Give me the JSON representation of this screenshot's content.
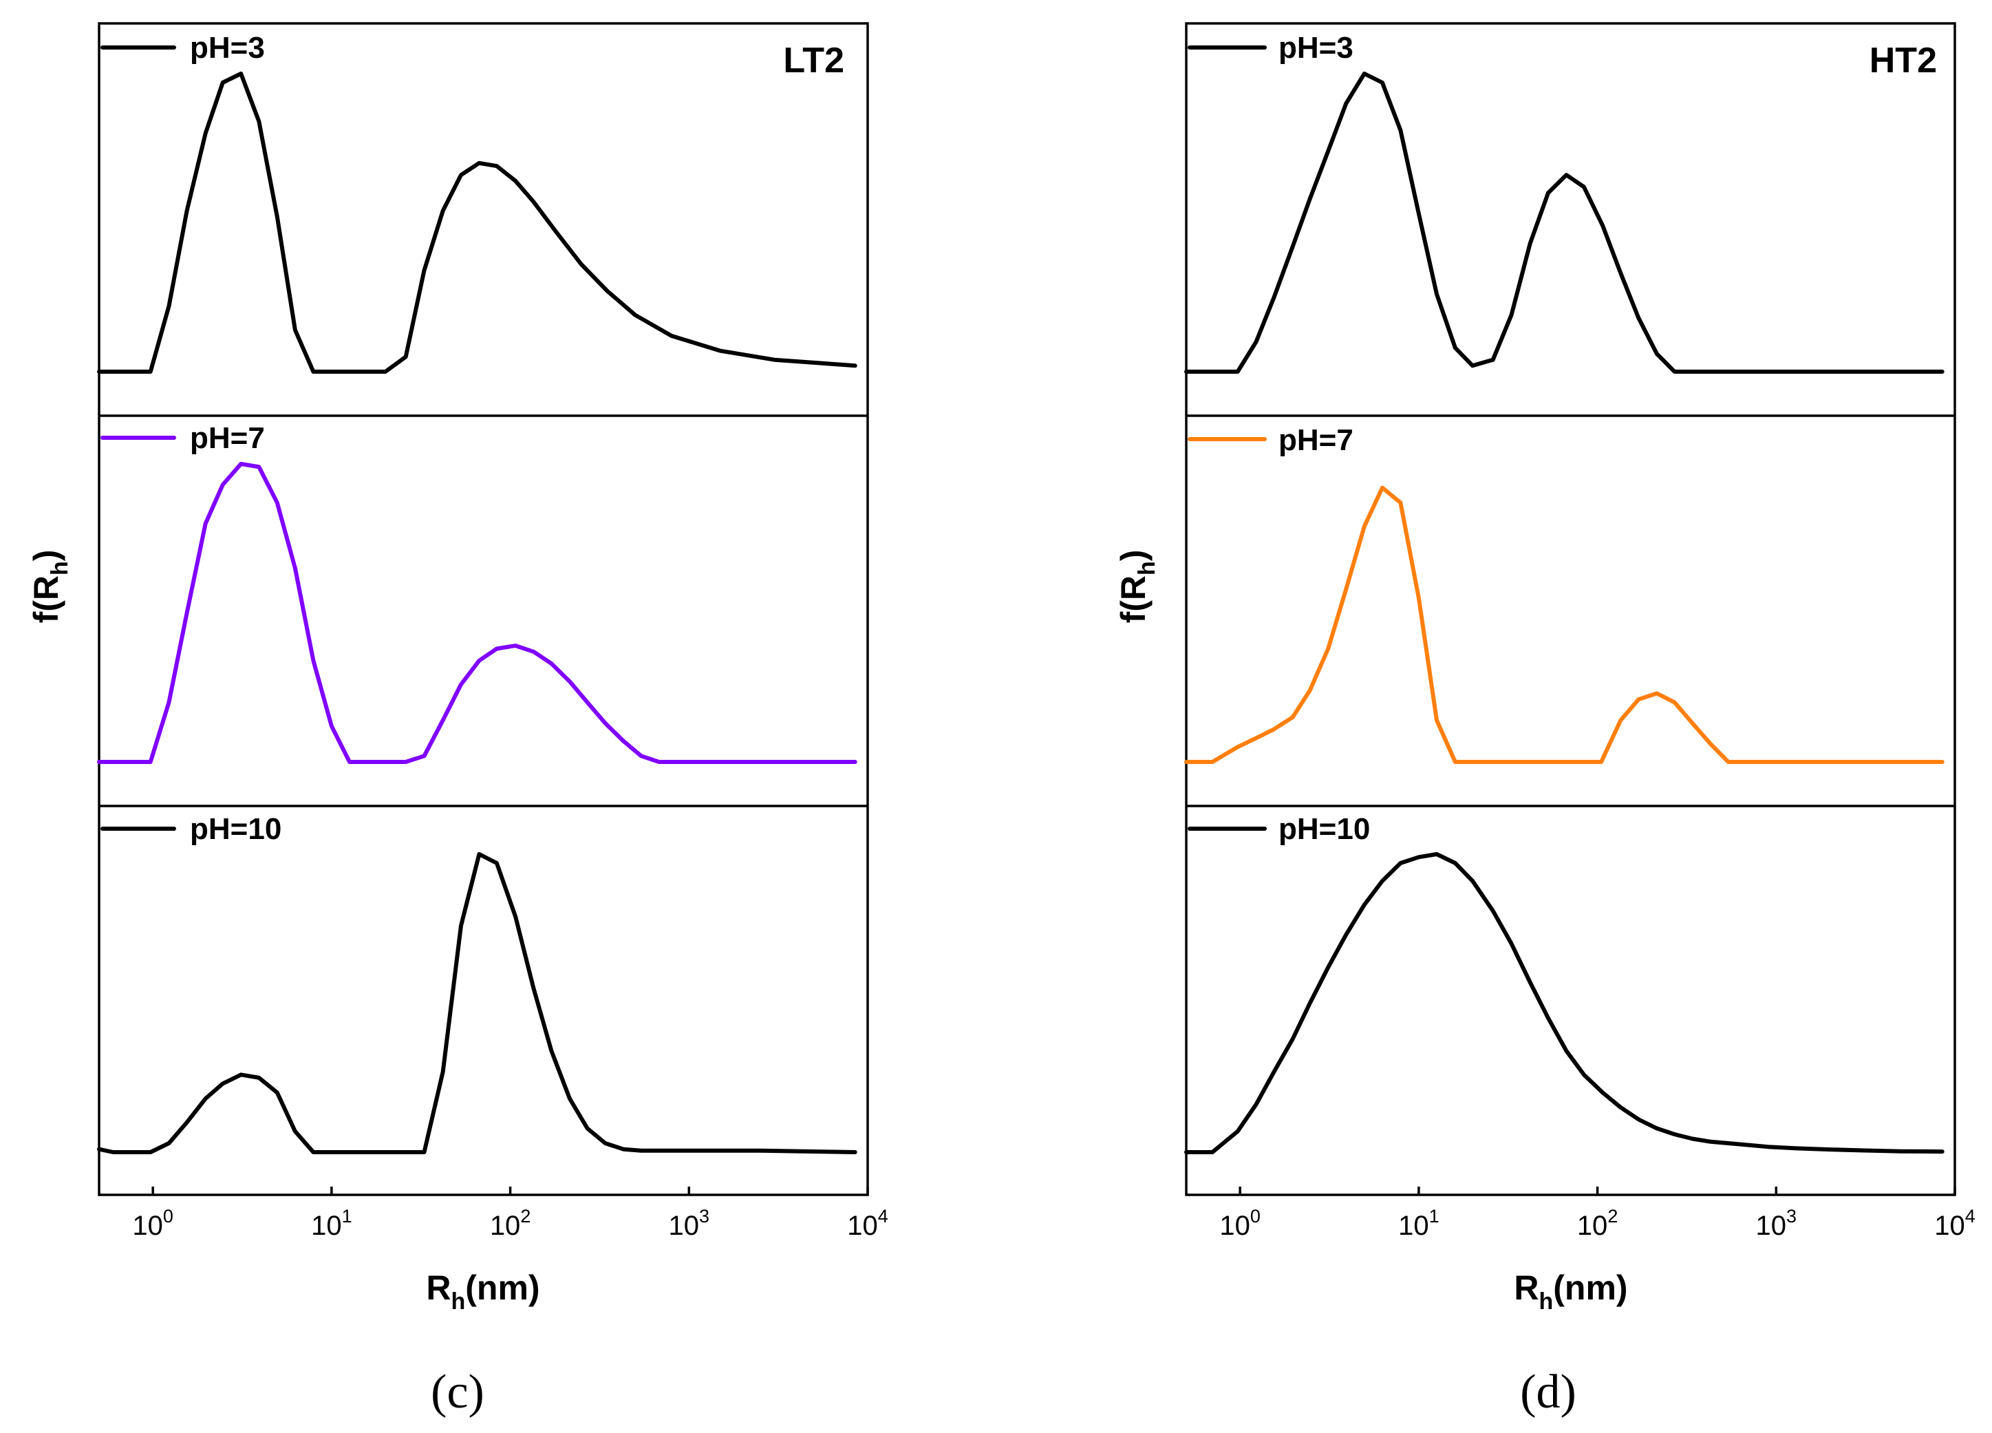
{
  "chart_data": [
    {
      "type": "line",
      "panel_label": "(c)",
      "sample_tag": "LT2",
      "xlabel_main": "R",
      "xlabel_sub": "h",
      "xlabel_rest": "(nm)",
      "ylabel_main": "f(R",
      "ylabel_sub": "h",
      "ylabel_rest": ")",
      "x_scale": "log",
      "xlim": [
        0.5,
        10000
      ],
      "x_ticks": [
        {
          "base": "10",
          "exp": "0",
          "value": 1
        },
        {
          "base": "10",
          "exp": "1",
          "value": 10
        },
        {
          "base": "10",
          "exp": "2",
          "value": 100
        },
        {
          "base": "10",
          "exp": "3",
          "value": 1000
        },
        {
          "base": "10",
          "exp": "4",
          "value": 10000
        }
      ],
      "y_ticks": "none",
      "ylim": [
        0,
        1
      ],
      "series": [
        {
          "name": "pH=3",
          "color": "#000000",
          "x": [
            0.5,
            0.97,
            1.23,
            1.55,
            1.97,
            2.46,
            3.11,
            3.92,
            4.96,
            6.25,
            7.91,
            10,
            20,
            26,
            33,
            42,
            53,
            67,
            84,
            107,
            135,
            180,
            250,
            350,
            500,
            800,
            1500,
            3000,
            8500
          ],
          "y": [
            0,
            0,
            0.22,
            0.54,
            0.8,
            0.97,
            1.0,
            0.84,
            0.52,
            0.14,
            0,
            0,
            0,
            0.05,
            0.34,
            0.54,
            0.66,
            0.7,
            0.69,
            0.64,
            0.57,
            0.47,
            0.36,
            0.27,
            0.19,
            0.12,
            0.07,
            0.04,
            0.02
          ]
        },
        {
          "name": "pH=7",
          "color": "#8000ff",
          "x": [
            0.5,
            0.97,
            1.23,
            1.55,
            1.97,
            2.46,
            3.11,
            3.92,
            4.96,
            6.25,
            7.91,
            10,
            12.6,
            20,
            26,
            33,
            42,
            53,
            67,
            84,
            107,
            135,
            170,
            215,
            270,
            340,
            430,
            540,
            680,
            8500
          ],
          "y": [
            0,
            0,
            0.2,
            0.5,
            0.8,
            0.93,
            1.0,
            0.99,
            0.87,
            0.65,
            0.34,
            0.12,
            0,
            0,
            0,
            0.02,
            0.14,
            0.26,
            0.34,
            0.38,
            0.39,
            0.37,
            0.33,
            0.27,
            0.2,
            0.13,
            0.07,
            0.02,
            0,
            0
          ]
        },
        {
          "name": "pH=10",
          "color": "#000000",
          "x": [
            0.5,
            0.6,
            0.97,
            1.23,
            1.55,
            1.97,
            2.46,
            3.11,
            3.92,
            4.96,
            6.25,
            7.91,
            10,
            20,
            33,
            42,
            53,
            67,
            84,
            107,
            135,
            170,
            215,
            270,
            340,
            430,
            540,
            700,
            2500,
            8500
          ],
          "y": [
            0.01,
            0,
            0,
            0.03,
            0.1,
            0.18,
            0.23,
            0.26,
            0.25,
            0.2,
            0.07,
            0,
            0,
            0,
            0,
            0.27,
            0.76,
            1.0,
            0.97,
            0.79,
            0.55,
            0.34,
            0.18,
            0.08,
            0.03,
            0.01,
            0.005,
            0.005,
            0.005,
            0
          ]
        }
      ]
    },
    {
      "type": "line",
      "panel_label": "(d)",
      "sample_tag": "HT2",
      "xlabel_main": "R",
      "xlabel_sub": "h",
      "xlabel_rest": "(nm)",
      "ylabel_main": "f(R",
      "ylabel_sub": "h",
      "ylabel_rest": ")",
      "x_scale": "log",
      "xlim": [
        0.5,
        10000
      ],
      "x_ticks": [
        {
          "base": "10",
          "exp": "0",
          "value": 1
        },
        {
          "base": "10",
          "exp": "1",
          "value": 10
        },
        {
          "base": "10",
          "exp": "2",
          "value": 100
        },
        {
          "base": "10",
          "exp": "3",
          "value": 1000
        },
        {
          "base": "10",
          "exp": "4",
          "value": 10000
        }
      ],
      "y_ticks": "none",
      "ylim": [
        0,
        1
      ],
      "series": [
        {
          "name": "pH=3",
          "color": "#000000",
          "x": [
            0.5,
            0.97,
            1.23,
            1.55,
            1.97,
            2.46,
            3.11,
            3.92,
            4.96,
            6.25,
            7.91,
            10,
            12.6,
            16,
            20,
            26,
            33,
            42,
            53,
            67,
            84,
            107,
            135,
            170,
            215,
            270,
            8500
          ],
          "y": [
            0,
            0,
            0.1,
            0.25,
            0.42,
            0.58,
            0.74,
            0.9,
            1.0,
            0.97,
            0.81,
            0.53,
            0.26,
            0.08,
            0.02,
            0.04,
            0.19,
            0.43,
            0.6,
            0.66,
            0.62,
            0.49,
            0.33,
            0.18,
            0.06,
            0,
            0
          ]
        },
        {
          "name": "pH=7",
          "color": "#ff7f0e",
          "x": [
            0.5,
            0.7,
            0.97,
            1.23,
            1.55,
            1.97,
            2.46,
            3.11,
            3.92,
            4.96,
            6.25,
            7.91,
            10,
            12.6,
            16,
            20,
            105,
            135,
            170,
            215,
            270,
            340,
            430,
            540,
            8500
          ],
          "y": [
            0,
            0,
            0.05,
            0.08,
            0.11,
            0.15,
            0.24,
            0.38,
            0.58,
            0.79,
            0.92,
            0.87,
            0.55,
            0.14,
            0,
            0,
            0,
            0.14,
            0.21,
            0.23,
            0.2,
            0.13,
            0.06,
            0,
            0
          ]
        },
        {
          "name": "pH=10",
          "color": "#000000",
          "x": [
            0.5,
            0.7,
            0.97,
            1.23,
            1.55,
            1.97,
            2.46,
            3.11,
            3.92,
            4.96,
            6.25,
            7.91,
            10,
            12.6,
            16,
            20,
            26,
            33,
            42,
            53,
            67,
            84,
            107,
            135,
            170,
            215,
            270,
            340,
            430,
            540,
            700,
            900,
            1300,
            2000,
            3000,
            5000,
            8500
          ],
          "y": [
            0,
            0,
            0.07,
            0.16,
            0.27,
            0.38,
            0.5,
            0.62,
            0.73,
            0.83,
            0.91,
            0.97,
            0.99,
            1.0,
            0.97,
            0.91,
            0.81,
            0.7,
            0.57,
            0.45,
            0.34,
            0.26,
            0.2,
            0.15,
            0.11,
            0.08,
            0.06,
            0.045,
            0.035,
            0.03,
            0.024,
            0.018,
            0.013,
            0.009,
            0.006,
            0.003,
            0.002
          ]
        }
      ]
    }
  ]
}
